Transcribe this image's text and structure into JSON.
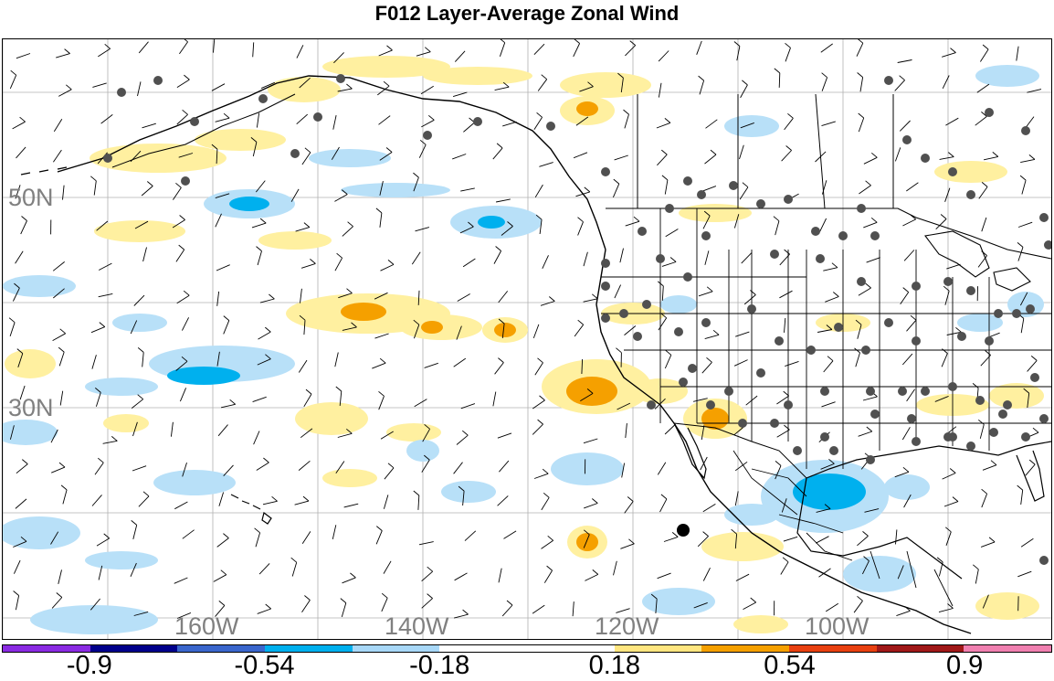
{
  "title": "F012 Layer-Average Zonal Wind",
  "lat_labels": [
    "50N",
    "30N"
  ],
  "lon_labels": [
    "160W",
    "140W",
    "120W",
    "100W"
  ],
  "colorbar": {
    "colors": [
      "#8a2be2",
      "#00008b",
      "#3a66cc",
      "#00b0ee",
      "#a8d8f8",
      "#ffffff",
      "#ffffff",
      "#ffe680",
      "#f5a000",
      "#e84010",
      "#a01818",
      "#f080b0"
    ],
    "labels": [
      "-0.9",
      "-0.54",
      "-0.18",
      "0.18",
      "0.54",
      "0.9"
    ]
  },
  "colors": {
    "light_blue": "#b8e0f8",
    "blue": "#00b0ee",
    "light_yellow": "#fff0a0",
    "orange": "#f5a000",
    "station_dot": "#505050",
    "grid": "#b0b0b0"
  }
}
